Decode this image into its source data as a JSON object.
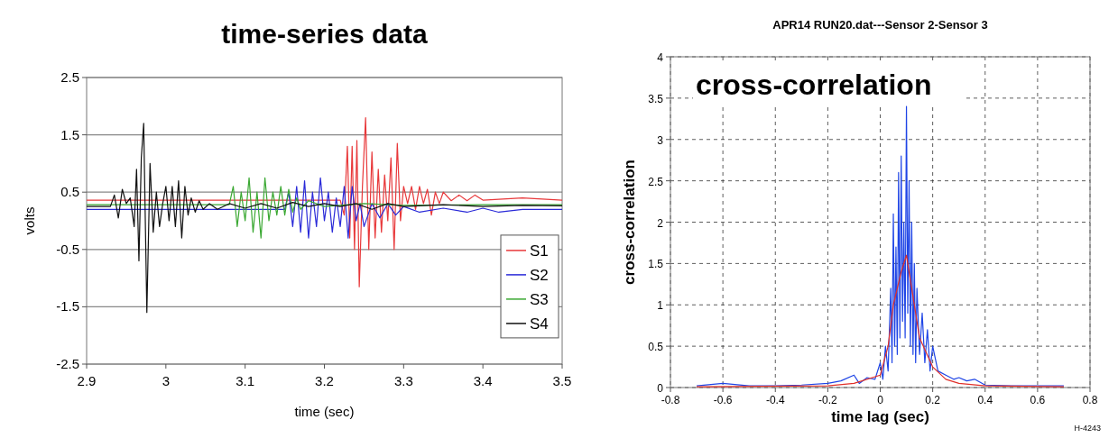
{
  "chart_data": [
    {
      "type": "line",
      "title": "time-series data",
      "xlabel": "time (sec)",
      "ylabel": "volts",
      "xlim": [
        2.9,
        3.5
      ],
      "xticks": [
        2.9,
        3,
        3.1,
        3.2,
        3.3,
        3.4,
        3.5
      ],
      "ylim": [
        -2.5,
        2.5
      ],
      "yticks": [
        -2.5,
        -1.5,
        -0.5,
        0.5,
        1.5,
        2.5
      ],
      "grid": "y",
      "legend": "right",
      "series": [
        {
          "name": "S1",
          "color": "#e8383a",
          "x": [
            2.9,
            3.22,
            3.225,
            3.229,
            3.232,
            3.235,
            3.238,
            3.241,
            3.244,
            3.248,
            3.252,
            3.256,
            3.26,
            3.264,
            3.268,
            3.272,
            3.276,
            3.28,
            3.284,
            3.288,
            3.292,
            3.296,
            3.3,
            3.305,
            3.31,
            3.315,
            3.32,
            3.325,
            3.33,
            3.335,
            3.34,
            3.345,
            3.35,
            3.36,
            3.37,
            3.38,
            3.39,
            3.4,
            3.45,
            3.5
          ],
          "values": [
            0.36,
            0.36,
            0.1,
            1.3,
            -0.3,
            1.3,
            -0.5,
            1.4,
            -1.15,
            0.6,
            1.8,
            -0.5,
            1.2,
            -0.3,
            0.9,
            -0.2,
            0.8,
            0,
            1.1,
            -0.5,
            1.35,
            0,
            0.6,
            0.3,
            0.6,
            0.2,
            0.6,
            0.3,
            0.55,
            0.1,
            0.5,
            0.3,
            0.5,
            0.35,
            0.45,
            0.35,
            0.45,
            0.36,
            0.4,
            0.36
          ]
        },
        {
          "name": "S2",
          "color": "#2a2ad8",
          "x": [
            2.9,
            3.15,
            3.155,
            3.16,
            3.165,
            3.17,
            3.175,
            3.18,
            3.185,
            3.19,
            3.195,
            3.2,
            3.205,
            3.21,
            3.215,
            3.22,
            3.225,
            3.23,
            3.235,
            3.24,
            3.245,
            3.25,
            3.26,
            3.27,
            3.28,
            3.29,
            3.3,
            3.32,
            3.35,
            3.38,
            3.4,
            3.42,
            3.45,
            3.5
          ],
          "values": [
            0.2,
            0.2,
            0.5,
            -0.1,
            0.6,
            -0.2,
            0.7,
            -0.3,
            0.5,
            -0.1,
            0.75,
            0,
            0.5,
            -0.2,
            0.4,
            -0.1,
            0.6,
            -0.3,
            0.6,
            0,
            0.3,
            -0.1,
            0.3,
            0.05,
            0.3,
            0.1,
            0.25,
            0.15,
            0.22,
            0.15,
            0.22,
            0.15,
            0.2,
            0.2
          ]
        },
        {
          "name": "S3",
          "color": "#3aa832",
          "x": [
            2.9,
            3.08,
            3.085,
            3.09,
            3.095,
            3.1,
            3.105,
            3.11,
            3.115,
            3.12,
            3.125,
            3.13,
            3.135,
            3.14,
            3.145,
            3.15,
            3.155,
            3.16,
            3.165,
            3.17,
            3.18,
            3.2,
            3.25,
            3.3,
            3.4,
            3.5
          ],
          "values": [
            0.28,
            0.28,
            0.6,
            -0.1,
            0.5,
            0,
            0.75,
            -0.2,
            0.5,
            -0.3,
            0.75,
            0,
            0.5,
            0.1,
            0.6,
            0.1,
            0.55,
            0.15,
            0.4,
            0.2,
            0.35,
            0.25,
            0.3,
            0.27,
            0.28,
            0.28
          ]
        },
        {
          "name": "S4",
          "color": "#111111",
          "x": [
            2.9,
            2.93,
            2.935,
            2.94,
            2.945,
            2.95,
            2.955,
            2.96,
            2.963,
            2.966,
            2.969,
            2.972,
            2.976,
            2.98,
            2.984,
            2.988,
            2.992,
            2.996,
            3.0,
            3.004,
            3.008,
            3.012,
            3.016,
            3.02,
            3.024,
            3.028,
            3.032,
            3.037,
            3.042,
            3.047,
            3.055,
            3.065,
            3.08,
            3.1,
            3.12,
            3.14,
            3.16,
            3.18,
            3.2,
            3.22,
            3.24,
            3.26,
            3.28,
            3.3,
            3.35,
            3.4,
            3.45,
            3.5
          ],
          "values": [
            0.25,
            0.25,
            0.45,
            0.05,
            0.55,
            0.3,
            0.4,
            -0.1,
            0.9,
            -0.7,
            1.1,
            1.7,
            -1.6,
            1.0,
            -0.2,
            0.5,
            -0.1,
            0.3,
            0.6,
            0,
            0.6,
            -0.1,
            0.7,
            -0.3,
            0.6,
            0.1,
            0.4,
            0.15,
            0.35,
            0.2,
            0.3,
            0.2,
            0.3,
            0.22,
            0.3,
            0.22,
            0.32,
            0.25,
            0.3,
            0.25,
            0.3,
            0.2,
            0.3,
            0.25,
            0.28,
            0.25,
            0.27,
            0.26
          ]
        }
      ]
    },
    {
      "type": "line",
      "title": "APR14 RUN20.dat---Sensor 2-Sensor 3",
      "xlabel": "time lag (sec)",
      "ylabel": "cross-correlation",
      "xlim": [
        -0.8,
        0.8
      ],
      "xticks": [
        -0.8,
        -0.6,
        -0.4,
        -0.2,
        0,
        0.2,
        0.4,
        0.6,
        0.8
      ],
      "ylim": [
        0,
        4
      ],
      "yticks": [
        0,
        0.5,
        1,
        1.5,
        2,
        2.5,
        3,
        3.5,
        4
      ],
      "grid": true,
      "annotations": [
        "cross-correlation",
        "H-4243"
      ],
      "series": [
        {
          "color": "#1f45e6",
          "x": [
            -0.7,
            -0.6,
            -0.5,
            -0.4,
            -0.3,
            -0.2,
            -0.15,
            -0.1,
            -0.08,
            -0.05,
            -0.02,
            0,
            0.01,
            0.02,
            0.03,
            0.04,
            0.045,
            0.05,
            0.055,
            0.06,
            0.065,
            0.07,
            0.075,
            0.08,
            0.085,
            0.09,
            0.095,
            0.1,
            0.105,
            0.11,
            0.115,
            0.12,
            0.125,
            0.13,
            0.135,
            0.14,
            0.15,
            0.16,
            0.17,
            0.18,
            0.19,
            0.2,
            0.22,
            0.25,
            0.28,
            0.3,
            0.33,
            0.36,
            0.4,
            0.5,
            0.6,
            0.7
          ],
          "values": [
            0.02,
            0.05,
            0.02,
            0.02,
            0.03,
            0.05,
            0.08,
            0.15,
            0.05,
            0.12,
            0.1,
            0.3,
            0.1,
            0.5,
            0.2,
            1.2,
            0.3,
            2.1,
            0.5,
            1.7,
            0.4,
            2.6,
            0.6,
            2.8,
            0.8,
            2,
            0.6,
            3.4,
            0.9,
            2.5,
            0.5,
            2,
            0.4,
            1.5,
            0.3,
            1.2,
            0.4,
            0.9,
            0.3,
            0.7,
            0.2,
            0.5,
            0.2,
            0.15,
            0.1,
            0.12,
            0.08,
            0.1,
            0.03,
            0.02,
            0.02,
            0.02
          ]
        },
        {
          "color": "#e0302a",
          "x": [
            -0.7,
            -0.2,
            -0.1,
            0,
            0.03,
            0.05,
            0.08,
            0.1,
            0.12,
            0.15,
            0.2,
            0.25,
            0.3,
            0.4,
            0.7
          ],
          "values": [
            0.01,
            0.02,
            0.05,
            0.15,
            0.5,
            1,
            1.4,
            1.6,
            1.2,
            0.6,
            0.25,
            0.1,
            0.05,
            0.02,
            0.01
          ]
        }
      ]
    }
  ]
}
